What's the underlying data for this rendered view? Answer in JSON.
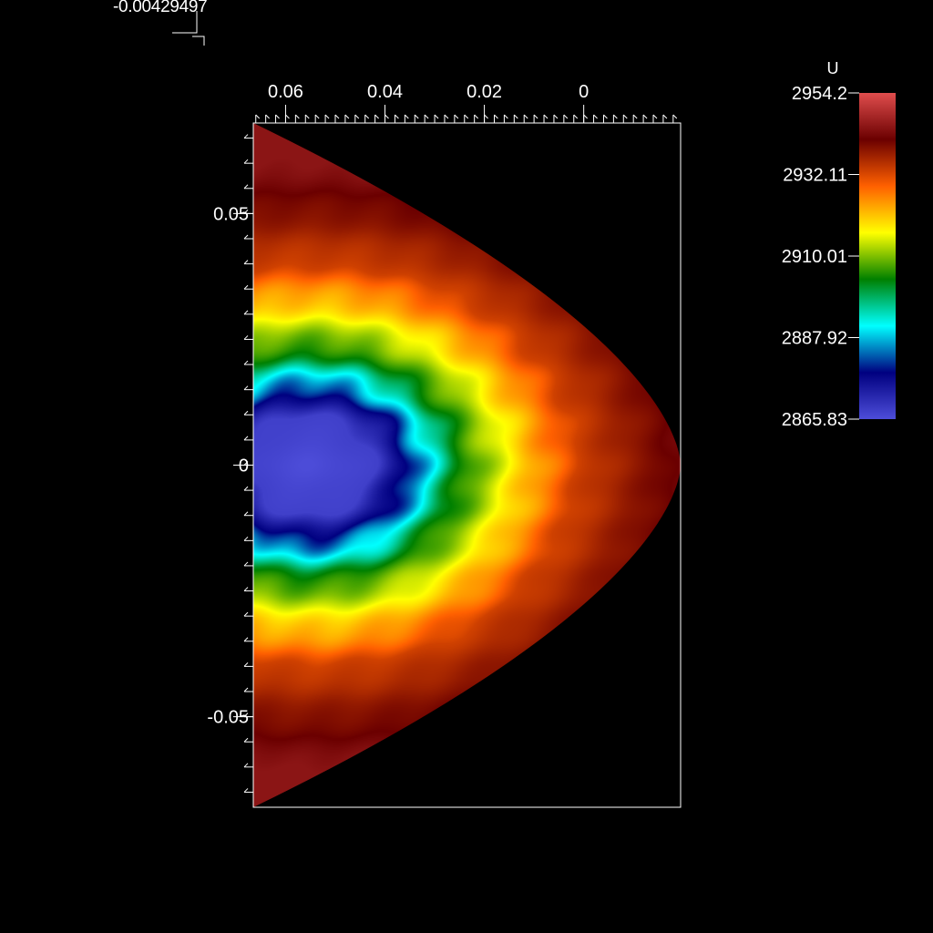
{
  "corner_readout": "-0.00429497",
  "chart_data": {
    "type": "heatmap",
    "title": "",
    "xlabel": "",
    "ylabel": "",
    "x_major_ticks": [
      0.06,
      0.04,
      0.02,
      0
    ],
    "x_tick_labels": [
      "0.06",
      "0.04",
      "0.02",
      "0"
    ],
    "x_range": [
      0.0665,
      -0.0195
    ],
    "x_reversed": true,
    "y_major_ticks": [
      0.05,
      0,
      -0.05
    ],
    "y_tick_labels": [
      "0.05",
      "0",
      "-0.05"
    ],
    "y_range": [
      -0.068,
      0.068
    ],
    "x_minor_step": 0.002,
    "y_minor_step": 0.005,
    "grid": false,
    "colorbar": {
      "title": "U",
      "min": 2865.83,
      "max": 2954.2,
      "ticks": [
        2954.2,
        2932.11,
        2910.01,
        2887.92,
        2865.83
      ],
      "tick_labels": [
        "2954.2",
        "2932.11",
        "2910.01",
        "2887.92",
        "2865.83"
      ],
      "colormap": [
        "#4d4dd9",
        "#000080",
        "#00ffff",
        "#008000",
        "#ffff00",
        "#ff6000",
        "#6b0000",
        "#e04d4d"
      ],
      "placement": "right"
    },
    "field": {
      "description_values": {
        "center_value": 2866,
        "outer_value": 2945,
        "dark_band_value": 2935
      },
      "profile": [
        {
          "r": 0.0,
          "value": 2866
        },
        {
          "r": 0.16,
          "value": 2868
        },
        {
          "r": 0.24,
          "value": 2878
        },
        {
          "r": 0.29,
          "value": 2889
        },
        {
          "r": 0.36,
          "value": 2902
        },
        {
          "r": 0.45,
          "value": 2912
        },
        {
          "r": 0.55,
          "value": 2922
        },
        {
          "r": 0.67,
          "value": 2933
        },
        {
          "r": 0.8,
          "value": 2938
        },
        {
          "r": 1.0,
          "value": 2945
        }
      ]
    }
  }
}
